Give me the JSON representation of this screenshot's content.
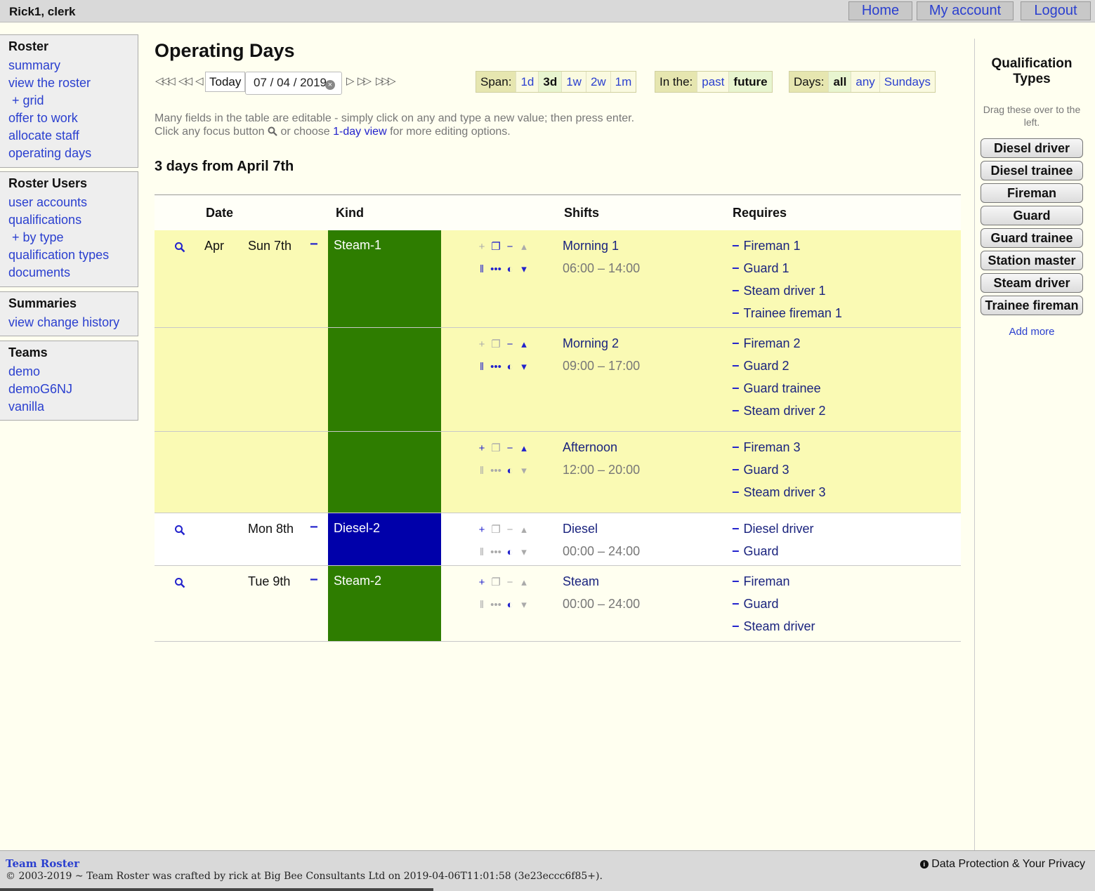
{
  "header": {
    "user": "Rick1, clerk",
    "nav": [
      "Home",
      "My account",
      "Logout"
    ]
  },
  "sidebar": {
    "roster": {
      "title": "Roster",
      "items": [
        "summary",
        "view the roster",
        "+ grid",
        "offer to work",
        "allocate staff",
        "operating days"
      ]
    },
    "users": {
      "title": "Roster Users",
      "items": [
        "user accounts",
        "qualifications",
        "+ by type",
        "qualification types",
        "documents"
      ]
    },
    "summaries": {
      "title": "Summaries",
      "items": [
        "view change history"
      ]
    },
    "teams": {
      "title": "Teams",
      "items": [
        "demo",
        "demoG6NJ",
        "vanilla"
      ]
    }
  },
  "main": {
    "title": "Operating Days",
    "today_label": "Today",
    "date_value": "07 / 04 / 2019",
    "span": {
      "label": "Span:",
      "options": [
        "1d",
        "3d",
        "1w",
        "2w",
        "1m"
      ],
      "selected": "3d"
    },
    "inthe": {
      "label": "In the:",
      "options": [
        "past",
        "future"
      ],
      "selected": "future"
    },
    "days": {
      "label": "Days:",
      "options": [
        "all",
        "any",
        "Sundays"
      ],
      "selected": "all"
    },
    "help_line1": "Many fields in the table are editable - simply click on any and type a new value; then press enter.",
    "help_line2_a": "Click any focus button",
    "help_line2_b": "or choose",
    "help_line2_link": "1-day view",
    "help_line2_c": "for more editing options.",
    "range_title": "3 days from April 7th"
  },
  "table": {
    "headers": {
      "date": "Date",
      "kind": "Kind",
      "shifts": "Shifts",
      "requires": "Requires"
    },
    "rows": [
      {
        "month": "Apr",
        "day": "Sun 7th",
        "kind": "Steam-1",
        "kind_color": "#2e7d00",
        "shift": "Morning 1",
        "time": "06:00 – 14:00",
        "requires": [
          "Fireman 1",
          "Guard 1",
          "Steam driver 1",
          "Trainee fireman 1"
        ]
      },
      {
        "month": "",
        "day": "",
        "kind": "",
        "kind_color": "#2e7d00",
        "shift": "Morning 2",
        "time": "09:00 – 17:00",
        "requires": [
          "Fireman 2",
          "Guard 2",
          "Guard trainee",
          "Steam driver 2"
        ]
      },
      {
        "month": "",
        "day": "",
        "kind": "",
        "kind_color": "#2e7d00",
        "shift": "Afternoon",
        "time": "12:00 – 20:00",
        "requires": [
          "Fireman 3",
          "Guard 3",
          "Steam driver 3"
        ]
      },
      {
        "month": "",
        "day": "Mon 8th",
        "kind": "Diesel-2",
        "kind_color": "#0000aa",
        "shift": "Diesel",
        "time": "00:00 – 24:00",
        "requires": [
          "Diesel driver",
          "Guard"
        ]
      },
      {
        "month": "",
        "day": "Tue 9th",
        "kind": "Steam-2",
        "kind_color": "#2e7d00",
        "shift": "Steam",
        "time": "00:00 – 24:00",
        "requires": [
          "Fireman",
          "Guard",
          "Steam driver"
        ]
      }
    ]
  },
  "qualification_types": {
    "title": "Qualification Types",
    "hint": "Drag these over to the left.",
    "items": [
      "Diesel driver",
      "Diesel trainee",
      "Fireman",
      "Guard",
      "Guard trainee",
      "Station master",
      "Steam driver",
      "Trainee fireman"
    ],
    "add_more": "Add more"
  },
  "footer": {
    "brand": "Team Roster",
    "copyright": "© 2003-2019 ~ Team Roster was crafted by rick at Big Bee Consultants Ltd on 2019-04-06T11:01:58 (3e23eccc6f85+).",
    "privacy": "Data Protection & Your Privacy"
  }
}
